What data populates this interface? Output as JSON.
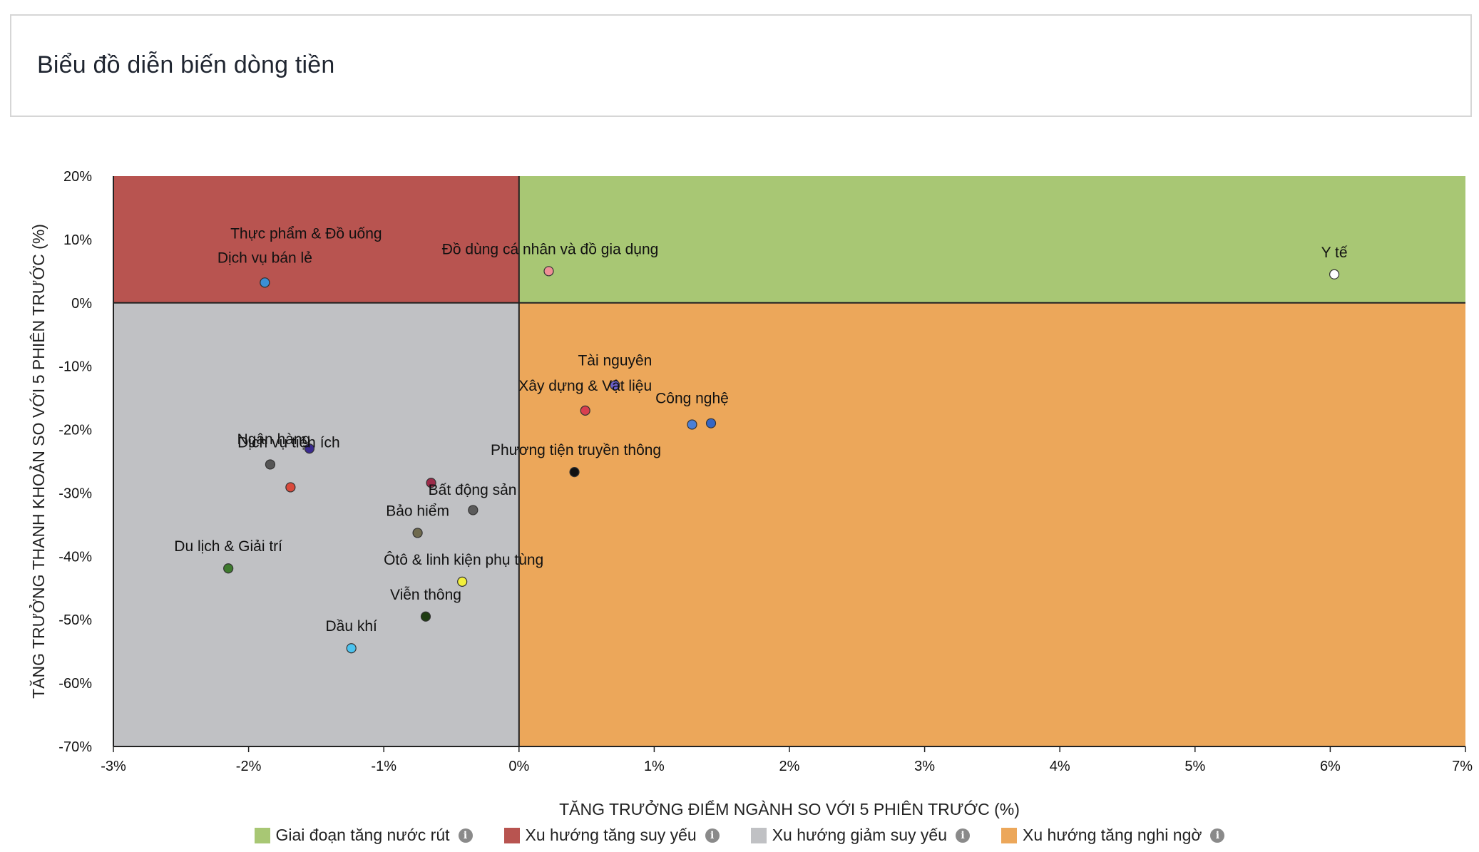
{
  "header": {
    "title": "Biểu đồ diễn biến dòng tiền"
  },
  "chart_data": {
    "type": "scatter",
    "xlabel": "TĂNG TRƯỞNG ĐIỂM NGÀNH SO VỚI 5 PHIÊN TRƯỚC (%)",
    "ylabel": "TĂNG TRƯỞNG THANH KHOẢN SO VỚI 5 PHIÊN TRƯỚC (%)",
    "xlim": [
      -3,
      7
    ],
    "ylim": [
      -70,
      20
    ],
    "x_ticks": [
      -3,
      -2,
      -1,
      0,
      1,
      2,
      3,
      4,
      5,
      6,
      7
    ],
    "x_tick_labels": [
      "-3%",
      "-2%",
      "-1%",
      "0%",
      "1%",
      "2%",
      "3%",
      "4%",
      "5%",
      "6%",
      "7%"
    ],
    "y_ticks": [
      20,
      10,
      0,
      -10,
      -20,
      -30,
      -40,
      -50,
      -60,
      -70
    ],
    "y_tick_labels": [
      "20%",
      "10%",
      "0%",
      "-10%",
      "-20%",
      "-30%",
      "-40%",
      "-50%",
      "-60%",
      "-70%"
    ],
    "quadrants": [
      {
        "name": "Giai đoạn tăng nước rút",
        "x_range": [
          0,
          7
        ],
        "y_range": [
          0,
          20
        ],
        "color": "#a8c774"
      },
      {
        "name": "Xu hướng tăng suy yếu",
        "x_range": [
          -3,
          0
        ],
        "y_range": [
          0,
          20
        ],
        "color": "#b85450"
      },
      {
        "name": "Xu hướng giảm suy yếu",
        "x_range": [
          -3,
          0
        ],
        "y_range": [
          -70,
          0
        ],
        "color": "#c0c1c4"
      },
      {
        "name": "Xu hướng tăng nghi ngờ",
        "x_range": [
          0,
          7
        ],
        "y_range": [
          -70,
          0
        ],
        "color": "#eca75a"
      }
    ],
    "points": [
      {
        "label": "Thực phẩm & Đồ uống",
        "x": -1.88,
        "y": 3.2,
        "color": "#c77b7b"
      },
      {
        "label": "Dịch vụ bán lẻ",
        "x": -1.88,
        "y": 3.2,
        "color": "#3b8fd6"
      },
      {
        "label": "Đồ dùng cá nhân và đồ gia dụng",
        "x": 0.22,
        "y": 5.0,
        "color": "#ee8f96"
      },
      {
        "label": "Y tế",
        "x": 6.03,
        "y": 4.5,
        "color": "#ffffff"
      },
      {
        "label": "Tài nguyên",
        "x": 0.71,
        "y": -13.0,
        "color": "#6b5fc9"
      },
      {
        "label": "Xây dựng & Vật liệu",
        "x": 0.49,
        "y": -17.0,
        "color": "#d83f4f"
      },
      {
        "label": "Công nghệ",
        "x": 1.28,
        "y": -19.2,
        "color": "#4a7fd6"
      },
      {
        "label": "Công nghệ",
        "x": 1.42,
        "y": -19.0,
        "color": "#3566c4"
      },
      {
        "label": "Phương tiện truyền thông",
        "x": 0.41,
        "y": -26.7,
        "color": "#111111"
      },
      {
        "label": "Ngân hàng",
        "x": -1.55,
        "y": -23.0,
        "color": "#3a2a8f"
      },
      {
        "label": "Dịch vụ tiện ích",
        "x": -1.84,
        "y": -25.5,
        "color": "#555555"
      },
      {
        "label": "Dịch vụ tiện ích",
        "x": -1.69,
        "y": -29.1,
        "color": "#d94a3c"
      },
      {
        "label": "Bất động sản",
        "x": -0.65,
        "y": -28.4,
        "color": "#9c2c4a"
      },
      {
        "label": "Bất động sản",
        "x": -0.34,
        "y": -32.7,
        "color": "#5b5b5b"
      },
      {
        "label": "Bảo hiểm",
        "x": -0.75,
        "y": -36.3,
        "color": "#6f6a4e"
      },
      {
        "label": "Du lịch & Giải trí",
        "x": -2.15,
        "y": -41.9,
        "color": "#3e7a2e"
      },
      {
        "label": "Ôtô & linh kiện phụ tùng",
        "x": -0.42,
        "y": -44.0,
        "color": "#f2ef3c"
      },
      {
        "label": "Viễn thông",
        "x": -0.69,
        "y": -49.5,
        "color": "#1f3d12"
      },
      {
        "label": "Dầu khí",
        "x": -1.24,
        "y": -54.5,
        "color": "#4cc3ef"
      }
    ],
    "legend": [
      {
        "label": "Giai đoạn tăng nước rút",
        "color": "#a8c774"
      },
      {
        "label": "Xu hướng tăng suy yếu",
        "color": "#b85450"
      },
      {
        "label": "Xu hướng giảm suy yếu",
        "color": "#c0c1c4"
      },
      {
        "label": "Xu hướng tăng nghi ngờ",
        "color": "#eca75a"
      }
    ],
    "legend_placement": "bottom",
    "grid": false
  }
}
